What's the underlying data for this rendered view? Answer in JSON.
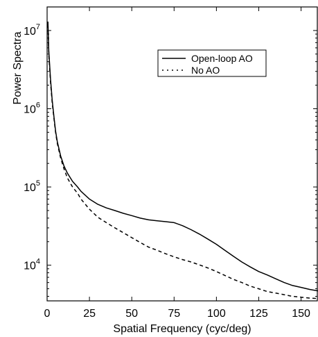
{
  "chart_data": {
    "type": "line",
    "xlabel": "Spatial Frequency (cyc/deg)",
    "ylabel": "Power Spectra",
    "scale": {
      "x": "linear",
      "y": "log"
    },
    "xlim": [
      0,
      160
    ],
    "ylim": [
      3500,
      20000000
    ],
    "x_ticks": [
      0,
      25,
      50,
      75,
      100,
      125,
      150
    ],
    "y_ticks": [
      {
        "value": 10000,
        "base": "10",
        "exp": "4"
      },
      {
        "value": 100000,
        "base": "10",
        "exp": "5"
      },
      {
        "value": 1000000,
        "base": "10",
        "exp": "6"
      },
      {
        "value": 10000000,
        "base": "10",
        "exp": "7"
      }
    ],
    "grid": false,
    "legend_position": "top-right",
    "series": [
      {
        "name": "Open-loop AO",
        "style": "solid",
        "color": "#000000",
        "x": [
          0.5,
          1,
          2,
          3,
          4,
          5,
          6,
          8,
          10,
          12,
          15,
          18,
          20,
          25,
          30,
          35,
          40,
          45,
          50,
          55,
          60,
          65,
          70,
          75,
          80,
          85,
          90,
          95,
          100,
          105,
          110,
          115,
          120,
          125,
          130,
          135,
          140,
          145,
          150,
          155,
          160
        ],
        "y": [
          13000000,
          5500000,
          2400000,
          1300000,
          800000,
          520000,
          380000,
          250000,
          185000,
          150000,
          118000,
          100000,
          88000,
          70000,
          60000,
          54000,
          50000,
          46000,
          43000,
          40000,
          38000,
          37000,
          36000,
          35000,
          32000,
          28500,
          25000,
          21500,
          18500,
          15500,
          13000,
          11000,
          9500,
          8300,
          7500,
          6700,
          6000,
          5500,
          5200,
          4900,
          4700
        ]
      },
      {
        "name": "No AO",
        "style": "dashed",
        "color": "#000000",
        "x": [
          0.5,
          1,
          2,
          3,
          4,
          5,
          6,
          8,
          10,
          12,
          15,
          18,
          20,
          25,
          30,
          35,
          40,
          45,
          50,
          55,
          60,
          65,
          70,
          75,
          80,
          85,
          90,
          95,
          100,
          105,
          110,
          115,
          120,
          125,
          130,
          135,
          140,
          145,
          150,
          155,
          160
        ],
        "y": [
          12000000,
          5000000,
          2200000,
          1200000,
          760000,
          500000,
          360000,
          235000,
          170000,
          130000,
          100000,
          83000,
          70000,
          52000,
          41000,
          35000,
          30000,
          26000,
          22500,
          19500,
          17000,
          15500,
          14000,
          12800,
          11800,
          11000,
          10100,
          9200,
          8300,
          7400,
          6600,
          6000,
          5400,
          5000,
          4600,
          4400,
          4200,
          4000,
          3900,
          3800,
          3750
        ]
      }
    ]
  }
}
